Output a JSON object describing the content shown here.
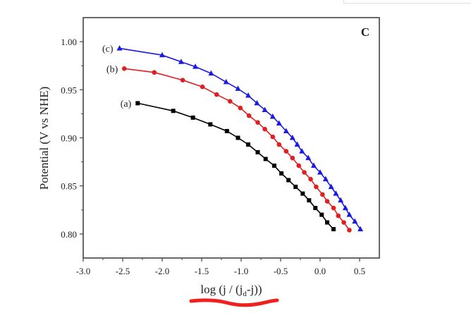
{
  "chart_data": {
    "type": "line",
    "panel_label": "C",
    "xlabel_main": "log (j / (j",
    "xlabel_sub": "d",
    "xlabel_end": "-j))",
    "ylabel": "Potential (V vs NHE)",
    "xlim": [
      -3.0,
      0.75
    ],
    "ylim": [
      0.775,
      1.025
    ],
    "xticks": [
      -3.0,
      -2.5,
      -2.0,
      -1.5,
      -1.0,
      -0.5,
      0.0,
      0.5
    ],
    "xtick_labels": [
      "-3.0",
      "-2.5",
      "-2.0",
      "-1.5",
      "-1.0",
      "-0.5",
      "0.0",
      "0.5"
    ],
    "yticks": [
      0.8,
      0.85,
      0.9,
      0.95,
      1.0
    ],
    "ytick_labels": [
      "0.80",
      "0.85",
      "0.90",
      "0.95",
      "1.00"
    ],
    "grid": false,
    "series": [
      {
        "name": "(a)",
        "color": "#000000",
        "marker": "square",
        "x": [
          -2.31,
          -1.86,
          -1.61,
          -1.39,
          -1.18,
          -1.04,
          -0.91,
          -0.79,
          -0.69,
          -0.58,
          -0.49,
          -0.4,
          -0.31,
          -0.22,
          -0.14,
          -0.06,
          0.02,
          0.09,
          0.17
        ],
        "y": [
          0.936,
          0.928,
          0.921,
          0.914,
          0.907,
          0.9,
          0.893,
          0.885,
          0.878,
          0.871,
          0.863,
          0.856,
          0.849,
          0.842,
          0.835,
          0.827,
          0.82,
          0.812,
          0.805
        ]
      },
      {
        "name": "(b)",
        "color": "#e02020",
        "marker": "circle",
        "x": [
          -2.48,
          -2.1,
          -1.74,
          -1.49,
          -1.31,
          -1.14,
          -1.01,
          -0.9,
          -0.79,
          -0.7,
          -0.6,
          -0.52,
          -0.43,
          -0.35,
          -0.27,
          -0.2,
          -0.12,
          -0.05,
          0.03,
          0.09,
          0.17,
          0.23,
          0.3,
          0.37
        ],
        "y": [
          0.972,
          0.968,
          0.96,
          0.953,
          0.945,
          0.938,
          0.931,
          0.923,
          0.916,
          0.909,
          0.901,
          0.893,
          0.886,
          0.879,
          0.871,
          0.864,
          0.857,
          0.849,
          0.841,
          0.834,
          0.827,
          0.819,
          0.812,
          0.804
        ]
      },
      {
        "name": "(c)",
        "color": "#1a1ae0",
        "marker": "triangle",
        "x": [
          -2.54,
          -2.0,
          -1.76,
          -1.58,
          -1.38,
          -1.19,
          -1.04,
          -0.91,
          -0.8,
          -0.7,
          -0.6,
          -0.52,
          -0.43,
          -0.35,
          -0.29,
          -0.23,
          -0.15,
          -0.08,
          0.0,
          0.07,
          0.14,
          0.2,
          0.26,
          0.32,
          0.37,
          0.44,
          0.51
        ],
        "y": [
          0.993,
          0.986,
          0.979,
          0.974,
          0.967,
          0.958,
          0.951,
          0.944,
          0.936,
          0.929,
          0.922,
          0.915,
          0.907,
          0.9,
          0.893,
          0.886,
          0.879,
          0.871,
          0.864,
          0.857,
          0.849,
          0.842,
          0.835,
          0.827,
          0.82,
          0.813,
          0.805
        ]
      }
    ]
  }
}
